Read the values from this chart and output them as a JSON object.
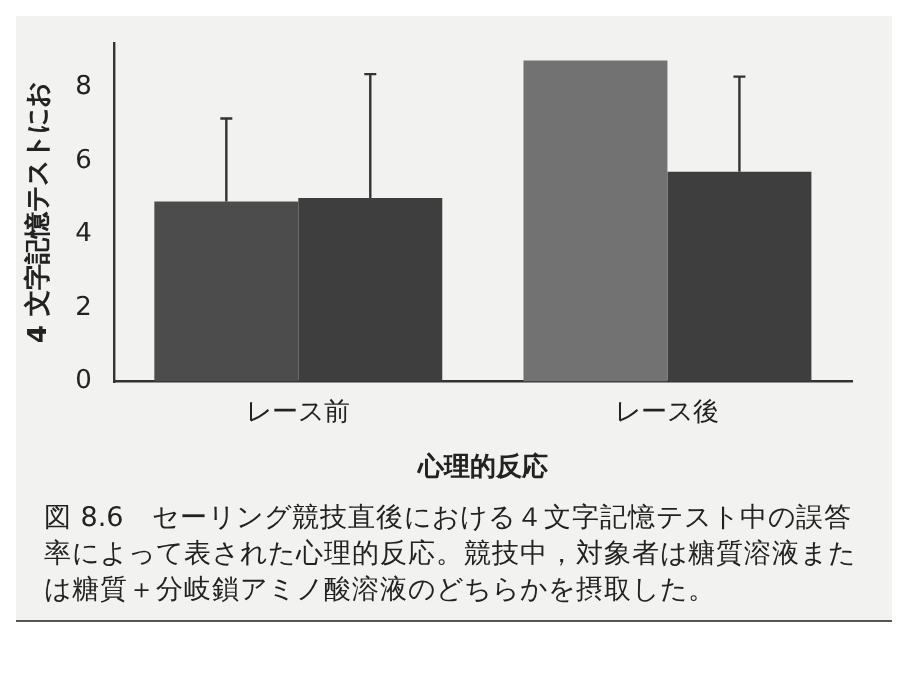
{
  "chart_data": {
    "type": "bar",
    "xlabel": "心理的反応",
    "ylabel": "4 文字記憶テストにお",
    "categories": [
      "レース前",
      "レース後"
    ],
    "series": [
      {
        "colors": [
          "#4c4c4c",
          "#727272"
        ],
        "values": [
          4.9,
          8.74
        ],
        "errors": [
          [
            4.9,
            7.16
          ],
          null
        ]
      },
      {
        "color": "#3e3e3e",
        "values": [
          5.0,
          5.71
        ],
        "errors": [
          [
            5.0,
            8.37
          ],
          [
            5.71,
            8.3
          ]
        ]
      }
    ],
    "ylim": [
      0,
      9.2
    ],
    "yticks": [
      0,
      2,
      4,
      6,
      8
    ],
    "grid": false,
    "legend": false,
    "annotations": [
      "図 8.6　セーリング競技直後における４文字記憶テスト中の誤答率によって表された心理的反応。競技中，対象者は糖質溶液または糖質＋分岐鎖アミノ酸溶液のどちらかを摂取した。"
    ]
  }
}
